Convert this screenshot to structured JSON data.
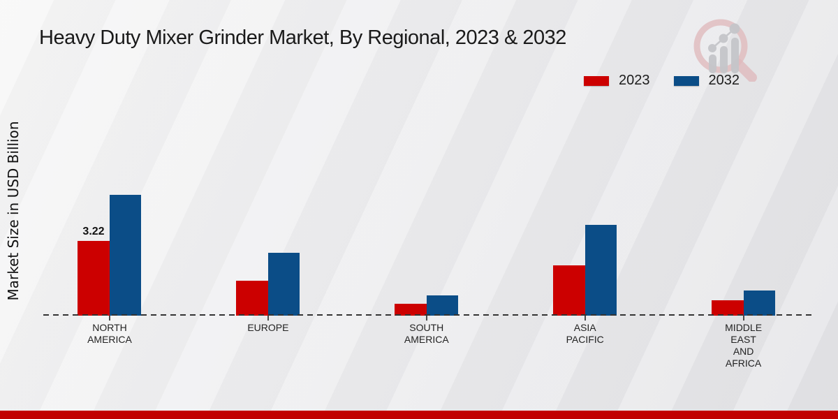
{
  "page": {
    "title": "Heavy Duty Mixer Grinder Market, By Regional, 2023 & 2032",
    "ylabel": "Market Size in USD Billion"
  },
  "legend": {
    "items": [
      {
        "label": "2023",
        "color": "#cc0000"
      },
      {
        "label": "2032",
        "color": "#0b4d87"
      }
    ]
  },
  "logo": {
    "name": "magnifier-bar-chart-logo"
  },
  "footer": {
    "accent_color": "#c10000"
  },
  "chart_data": {
    "type": "bar",
    "title": "Heavy Duty Mixer Grinder Market, By Regional, 2023 & 2032",
    "xlabel": "",
    "ylabel": "Market Size in USD Billion",
    "unit": "USD Billion",
    "categories": [
      "North America",
      "Europe",
      "South America",
      "Asia Pacific",
      "Middle East and Africa"
    ],
    "category_label_lines": [
      [
        "NORTH",
        "AMERICA"
      ],
      [
        "EUROPE"
      ],
      [
        "SOUTH",
        "AMERICA"
      ],
      [
        "ASIA",
        "PACIFIC"
      ],
      [
        "MIDDLE",
        "EAST",
        "AND",
        "AFRICA"
      ]
    ],
    "series": [
      {
        "name": "2023",
        "color": "#cc0000",
        "values": [
          3.22,
          1.5,
          0.52,
          2.18,
          0.65
        ]
      },
      {
        "name": "2032",
        "color": "#0b4d87",
        "values": [
          5.22,
          2.7,
          0.87,
          3.92,
          1.08
        ]
      }
    ],
    "bar_labels": [
      {
        "series_index": 0,
        "category_index": 0,
        "text": "3.22"
      }
    ],
    "ylim": [
      0,
      6
    ],
    "grid": false,
    "legend_position": "top-right",
    "baseline_style": "dashed"
  }
}
